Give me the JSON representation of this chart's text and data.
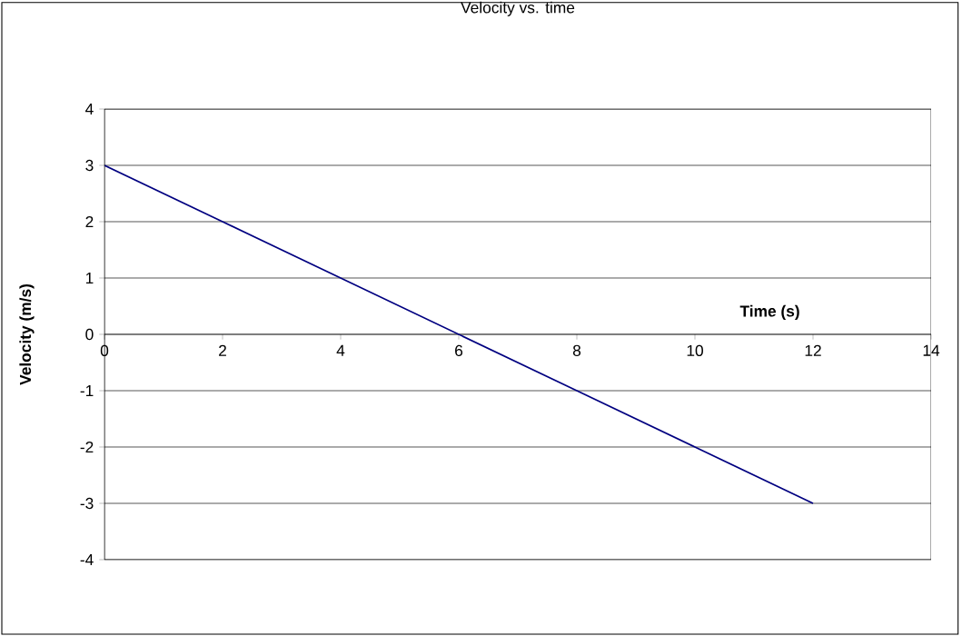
{
  "chart_data": {
    "type": "line",
    "title": "Velocity vs. time",
    "xlabel": "Time (s)",
    "ylabel": "Velocity (m/s)",
    "x": [
      0,
      2,
      4,
      6,
      8,
      10,
      12
    ],
    "series": [
      {
        "color": "#000080",
        "values": [
          3,
          2,
          1,
          0,
          -1,
          -2,
          -3
        ]
      }
    ],
    "xlim": [
      0,
      14
    ],
    "ylim": [
      -4,
      4
    ],
    "xticks": [
      0,
      2,
      4,
      6,
      8,
      10,
      12,
      14
    ],
    "yticks": [
      -4,
      -3,
      -2,
      -1,
      0,
      1,
      2,
      3,
      4
    ],
    "grid": "y",
    "marker": "none",
    "line_style": "solid"
  }
}
